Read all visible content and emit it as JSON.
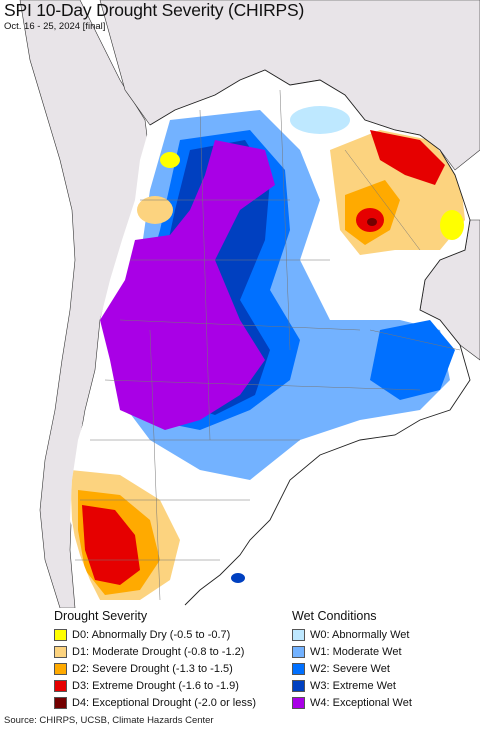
{
  "title": "SPI 10-Day Drought Severity (CHIRPS)",
  "subtitle": "Oct. 16 - 25, 2024 [final]",
  "legend": {
    "drought": {
      "heading": "Drought Severity",
      "items": [
        {
          "label": "D0: Abnormally Dry (-0.5 to -0.7)",
          "color": "#ffff00"
        },
        {
          "label": "D1: Moderate Drought (-0.8 to -1.2)",
          "color": "#fcd37f"
        },
        {
          "label": "D2: Severe Drought (-1.3 to -1.5)",
          "color": "#ffaa00"
        },
        {
          "label": "D3: Extreme Drought (-1.6 to -1.9)",
          "color": "#e60000"
        },
        {
          "label": "D4: Exceptional Drought (-2.0 or less)",
          "color": "#730000"
        }
      ]
    },
    "wet": {
      "heading": "Wet Conditions",
      "items": [
        {
          "label": "W0: Abnormally Wet",
          "color": "#bee8ff"
        },
        {
          "label": "W1: Moderate Wet",
          "color": "#73b2ff"
        },
        {
          "label": "W2: Severe Wet",
          "color": "#0070ff"
        },
        {
          "label": "W3: Extreme Wet",
          "color": "#0040c0"
        },
        {
          "label": "W4: Exceptional Wet",
          "color": "#a900e6"
        }
      ]
    }
  },
  "footer": "Source: CHIRPS, UCSB, Climate Hazards Center"
}
